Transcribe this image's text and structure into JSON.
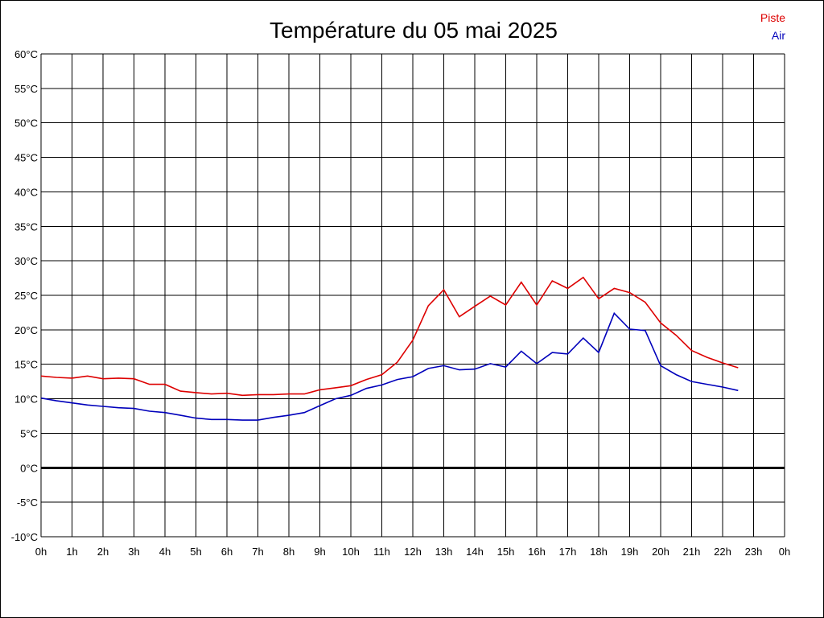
{
  "chart_data": {
    "type": "line",
    "title": "Température du 05 mai 2025",
    "ylim": [
      -10,
      60
    ],
    "y_ticks": [
      -10,
      -5,
      0,
      5,
      10,
      15,
      20,
      25,
      30,
      35,
      40,
      45,
      50,
      55,
      60
    ],
    "y_tick_suffix": "°C",
    "xlim": [
      0,
      24
    ],
    "x_ticks": [
      0,
      1,
      2,
      3,
      4,
      5,
      6,
      7,
      8,
      9,
      10,
      11,
      12,
      13,
      14,
      15,
      16,
      17,
      18,
      19,
      20,
      21,
      22,
      23,
      24
    ],
    "x_tick_labels": [
      "0h",
      "1h",
      "2h",
      "3h",
      "4h",
      "5h",
      "6h",
      "7h",
      "8h",
      "9h",
      "10h",
      "11h",
      "12h",
      "13h",
      "14h",
      "15h",
      "16h",
      "17h",
      "18h",
      "19h",
      "20h",
      "21h",
      "22h",
      "23h",
      "0h"
    ],
    "grid": true,
    "zero_line": true,
    "legend_position": "top-right",
    "series": [
      {
        "name": "Piste",
        "color": "#dd0000",
        "x": [
          0,
          0.5,
          1,
          1.5,
          2,
          2.5,
          3,
          3.5,
          4,
          4.5,
          5,
          5.5,
          6,
          6.5,
          7,
          7.5,
          8,
          8.5,
          9,
          9.5,
          10,
          10.5,
          11,
          11.5,
          12,
          12.5,
          13,
          13.5,
          14,
          14.5,
          15,
          15.5,
          16,
          16.5,
          17,
          17.5,
          18,
          18.5,
          19,
          19.5,
          20,
          20.5,
          21,
          21.5,
          22,
          22.5
        ],
        "values": [
          13.3,
          13.1,
          13.0,
          13.3,
          12.9,
          13.0,
          12.9,
          12.1,
          12.1,
          11.1,
          10.9,
          10.7,
          10.8,
          10.5,
          10.6,
          10.6,
          10.7,
          10.7,
          11.3,
          11.6,
          11.9,
          12.8,
          13.5,
          15.3,
          18.5,
          23.5,
          25.8,
          21.9,
          23.4,
          24.9,
          23.6,
          26.9,
          23.6,
          27.1,
          26.0,
          27.6,
          24.5,
          26.0,
          25.4,
          24.0,
          21.0,
          19.2,
          17.0,
          16.0,
          15.2,
          14.5
        ]
      },
      {
        "name": "Air",
        "color": "#0000bb",
        "x": [
          0,
          0.5,
          1,
          1.5,
          2,
          2.5,
          3,
          3.5,
          4,
          4.5,
          5,
          5.5,
          6,
          6.5,
          7,
          7.5,
          8,
          8.5,
          9,
          9.5,
          10,
          10.5,
          11,
          11.5,
          12,
          12.5,
          13,
          13.5,
          14,
          14.5,
          15,
          15.5,
          16,
          16.5,
          17,
          17.5,
          18,
          18.5,
          19,
          19.5,
          20,
          20.5,
          21,
          21.5,
          22,
          22.5
        ],
        "values": [
          10.1,
          9.7,
          9.4,
          9.1,
          8.9,
          8.7,
          8.6,
          8.2,
          8.0,
          7.6,
          7.2,
          7.0,
          7.0,
          6.9,
          6.9,
          7.3,
          7.6,
          8.0,
          9.0,
          10.0,
          10.5,
          11.5,
          12.0,
          12.8,
          13.2,
          14.4,
          14.8,
          14.2,
          14.3,
          15.1,
          14.6,
          16.9,
          15.1,
          16.7,
          16.5,
          18.8,
          16.7,
          22.4,
          20.1,
          19.9,
          14.8,
          13.5,
          12.5,
          12.1,
          11.7,
          11.2
        ]
      }
    ]
  }
}
